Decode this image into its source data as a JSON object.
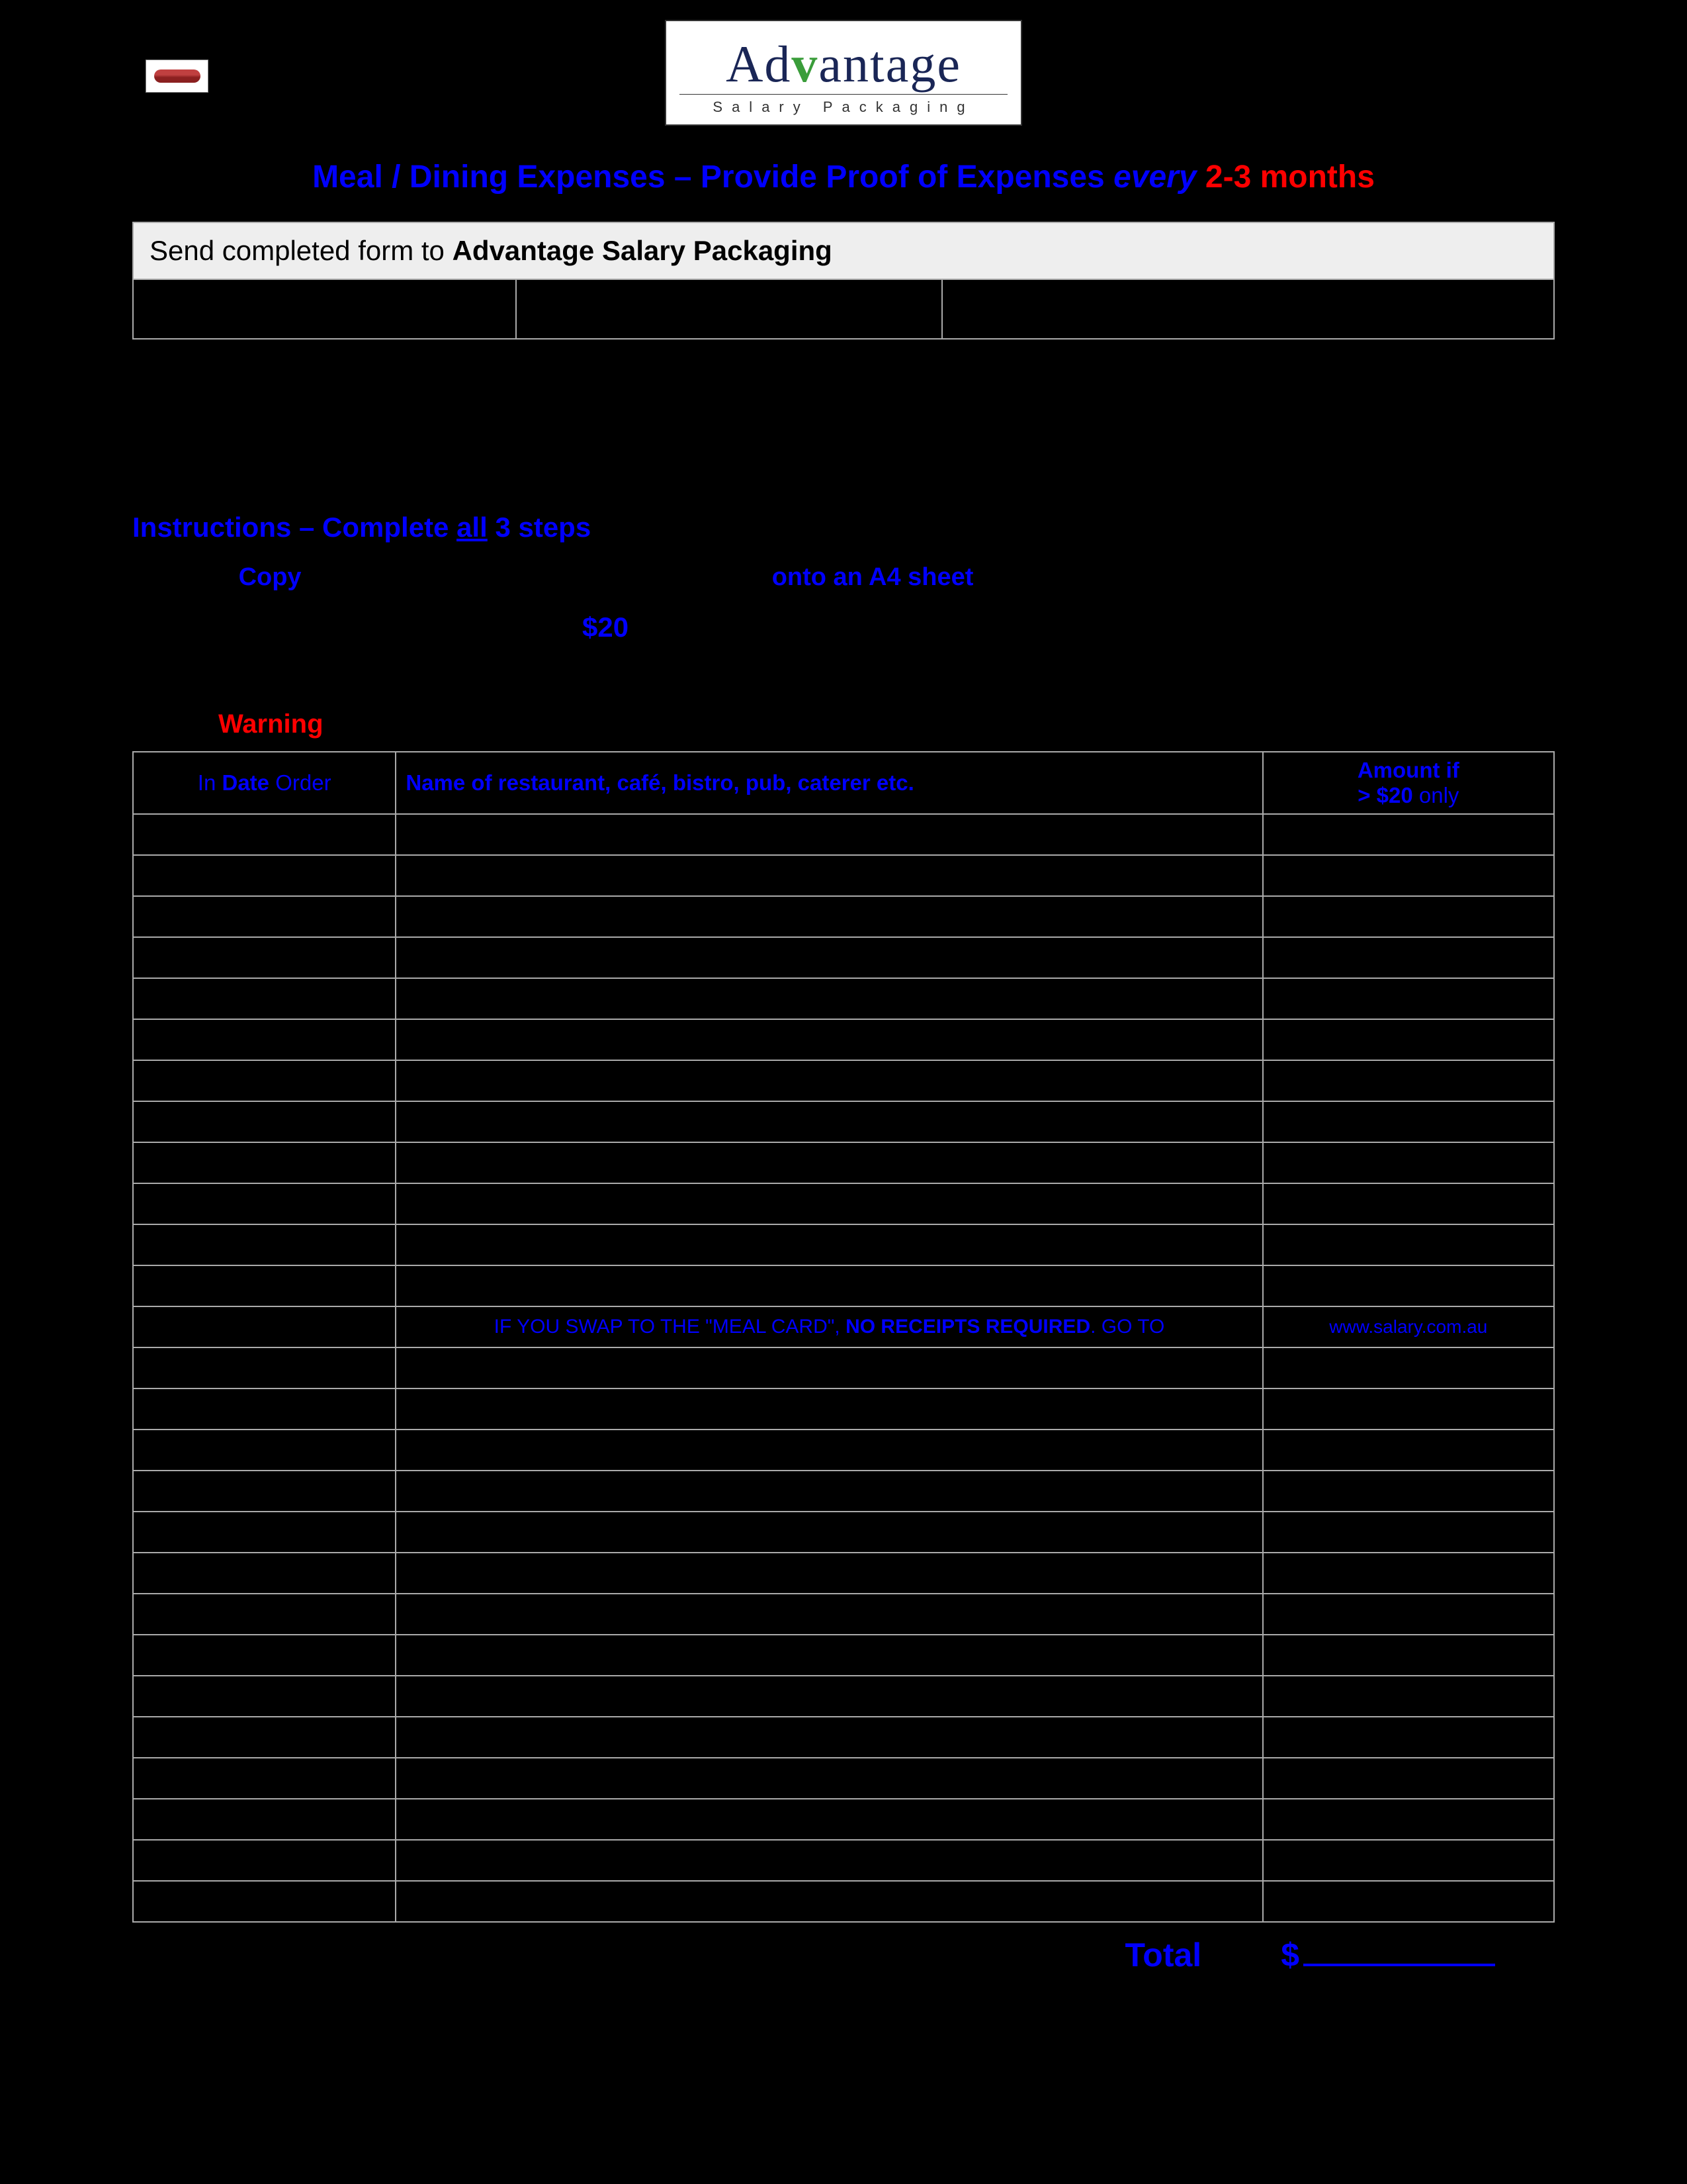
{
  "logo": {
    "brand_pre": "Ad",
    "brand_check": "v",
    "brand_post": "antage",
    "tagline": "Salary Packaging"
  },
  "title": {
    "part1": "Meal / Dining Expenses – Provide Proof of Expenses ",
    "every": "every",
    "period": " 2-3 months"
  },
  "send": {
    "prefix": "Send completed form to ",
    "bold": "Advantage Salary Packaging"
  },
  "instructions": {
    "pre": "Instructions – Complete ",
    "all": "all",
    "post": " 3 steps"
  },
  "step1": {
    "copy": "Copy",
    "onto": "onto an A4 sheet"
  },
  "amount_threshold": "$20",
  "warning_label": "Warning",
  "table": {
    "head_date_pre": "In ",
    "head_date_bold": "Date",
    "head_date_post": " Order",
    "head_name": "Name of restaurant, café, bistro, pub, caterer etc.",
    "head_amt_l1": "Amount if",
    "head_amt_l2_pre": "> $20",
    "head_amt_l2_post": " only",
    "mid_msg_pre": "IF YOU SWAP TO THE \"MEAL CARD\", ",
    "mid_msg_bold": "NO RECEIPTS REQUIRED",
    "mid_msg_post": ".  GO TO",
    "mid_site": "www.salary.com.au",
    "rows_before_mid": 12,
    "rows_after_mid": 14
  },
  "total": {
    "label": "Total",
    "currency": "$"
  },
  "colors": {
    "page_bg": "#000000",
    "blue": "#0000ff",
    "red": "#ff0000",
    "border": "#aaaaaa",
    "sendbox_bg": "#eeeeee"
  }
}
